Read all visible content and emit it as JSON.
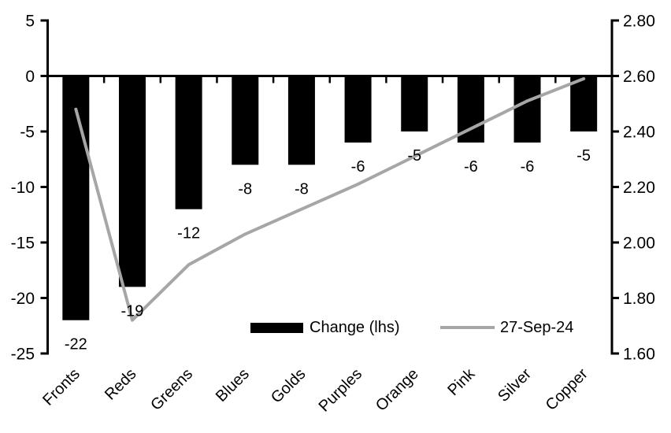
{
  "chart_data": {
    "type": "bar",
    "subtype": "combo-bar-line-dual-axis",
    "title": "",
    "xlabel": "",
    "ylabel_left": "",
    "ylabel_right": "",
    "grid": "off",
    "legend_position": "inside-bottom",
    "categories": [
      "Fronts",
      "Reds",
      "Greens",
      "Blues",
      "Golds",
      "Purples",
      "Orange",
      "Pink",
      "Silver",
      "Copper"
    ],
    "series": [
      {
        "name": "Change (lhs)",
        "type": "bar",
        "axis": "left",
        "values": [
          -22,
          -19,
          -12,
          -8,
          -8,
          -6,
          -5,
          -6,
          -6,
          -5
        ],
        "data_labels": [
          "-22",
          "-19",
          "-12",
          "-8",
          "-8",
          "-6",
          "-5",
          "-6",
          "-6",
          "-5"
        ]
      },
      {
        "name": "27-Sep-24",
        "type": "line",
        "axis": "right",
        "values": [
          2.48,
          1.72,
          1.92,
          2.03,
          2.12,
          2.21,
          2.31,
          2.41,
          2.51,
          2.59
        ]
      }
    ],
    "left_axis": {
      "min": -25,
      "max": 5,
      "tick_step": 5,
      "tick_labels": [
        "5",
        "0",
        "-5",
        "-10",
        "-15",
        "-20",
        "-25"
      ]
    },
    "right_axis": {
      "min": 1.6,
      "max": 2.8,
      "tick_step": 0.2,
      "tick_labels": [
        "2.80",
        "2.60",
        "2.40",
        "2.20",
        "2.00",
        "1.80",
        "1.60"
      ]
    },
    "legend": [
      {
        "label": "Change (lhs)",
        "swatch": "bar"
      },
      {
        "label": "27-Sep-24",
        "swatch": "line"
      }
    ],
    "colors": {
      "bar": "#000000",
      "line": "#a6a6a6",
      "axis": "#000000",
      "text": "#000000",
      "background": "#ffffff"
    }
  }
}
